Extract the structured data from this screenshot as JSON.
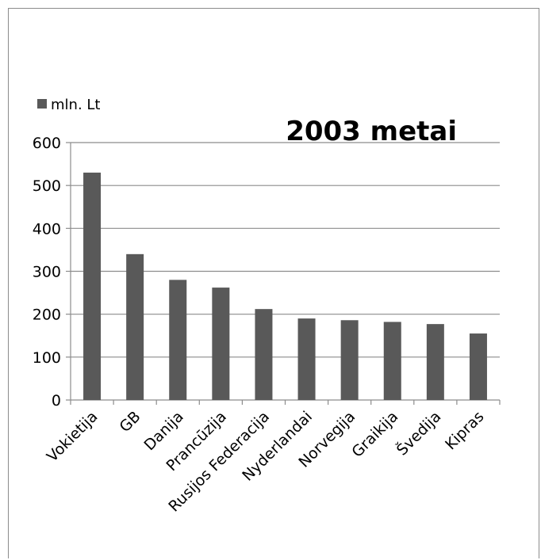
{
  "chart_data": {
    "type": "bar",
    "title": "2003 metai",
    "categories": [
      "Vokietija",
      "GB",
      "Danija",
      "Prancūzija",
      "Rusijos Federacija",
      "Nyderlandai",
      "Norvegija",
      "Graikija",
      "Švedija",
      "Kipras"
    ],
    "series": [
      {
        "name": "mln. Lt",
        "values": [
          530,
          340,
          280,
          262,
          212,
          190,
          186,
          182,
          177,
          155
        ],
        "color": "#595959"
      }
    ],
    "ylim": [
      0,
      600
    ],
    "yticks": [
      "0",
      "100",
      "200",
      "300",
      "400",
      "500",
      "600"
    ],
    "grid": true,
    "legend_position": "top-left",
    "xlabel": "",
    "ylabel": ""
  }
}
